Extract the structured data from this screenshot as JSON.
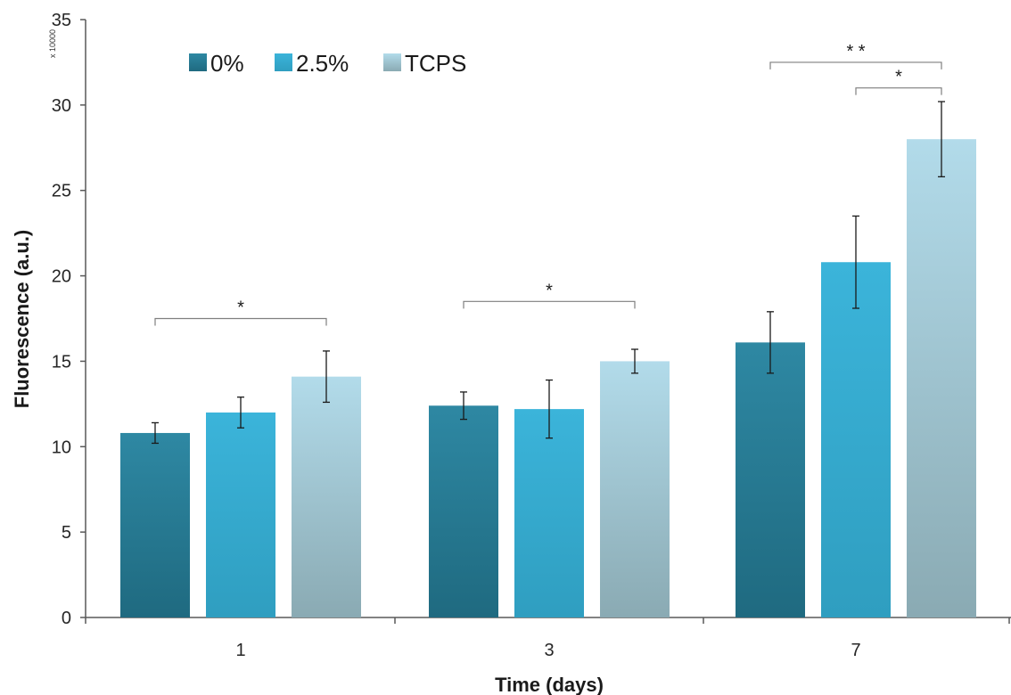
{
  "chart_data": {
    "type": "bar",
    "categories": [
      "1",
      "3",
      "7"
    ],
    "series": [
      {
        "name": "0%",
        "values": [
          10.8,
          12.4,
          16.1
        ],
        "errors": [
          0.6,
          0.8,
          1.8
        ],
        "color": "#2b7d96"
      },
      {
        "name": "2.5%",
        "values": [
          12.0,
          12.2,
          20.8
        ],
        "errors": [
          0.9,
          1.7,
          2.7
        ],
        "color": "#39aed4"
      },
      {
        "name": "TCPS",
        "values": [
          14.1,
          15.0,
          28.0
        ],
        "errors": [
          1.5,
          0.7,
          2.2
        ],
        "color": "#a9d3e3"
      }
    ],
    "xlabel": "Time (days)",
    "ylabel": "Fluorescence (a.u.)",
    "y_multiplier": "x 10000",
    "ylim": [
      0,
      35
    ],
    "yticks": [
      "0",
      "5",
      "10",
      "15",
      "20",
      "25",
      "30",
      "35"
    ],
    "grid": false,
    "legend_position": "top-left",
    "significance": [
      {
        "category": "1",
        "from": "0%",
        "to": "TCPS",
        "label": "*"
      },
      {
        "category": "3",
        "from": "0%",
        "to": "TCPS",
        "label": "*"
      },
      {
        "category": "7",
        "from": "0%",
        "to": "TCPS",
        "label": "* *"
      },
      {
        "category": "7",
        "from": "2.5%",
        "to": "TCPS",
        "label": "*"
      }
    ]
  }
}
